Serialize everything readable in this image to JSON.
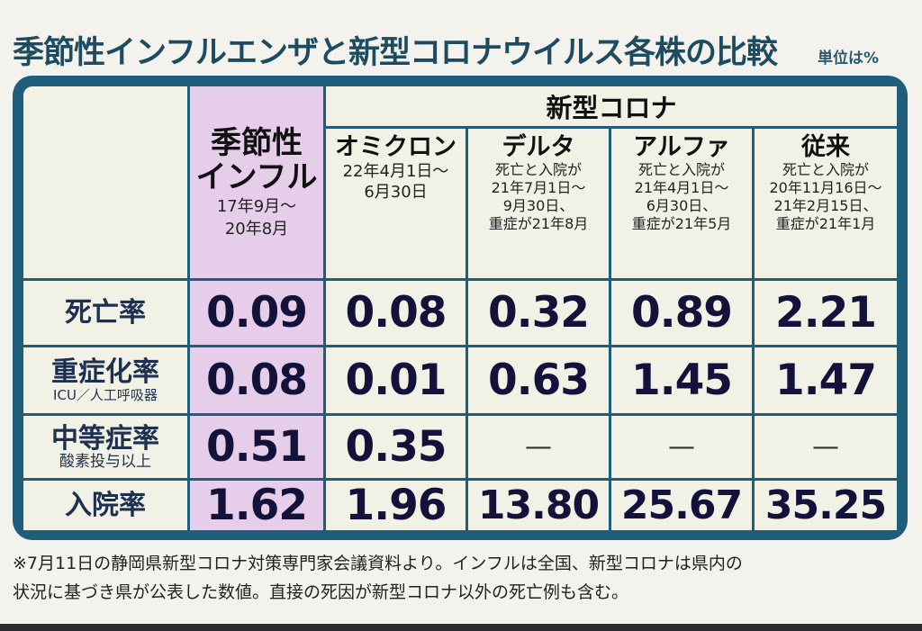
{
  "title": "季節性インフルエンザと新型コロナウイルス各株の比較",
  "unit_note": "単位は%",
  "group_header": "新型コロナ",
  "columns": [
    {
      "name": [
        "季節性",
        "インフル"
      ],
      "sub": [
        "17年9月～",
        "20年8月"
      ]
    },
    {
      "name": [
        "オミクロン"
      ],
      "sub": [
        "22年4月1日～",
        "6月30日"
      ]
    },
    {
      "name": [
        "デルタ"
      ],
      "sub": [
        "死亡と入院が",
        "21年7月1日～",
        "9月30日、",
        "重症が21年8月"
      ]
    },
    {
      "name": [
        "アルファ"
      ],
      "sub": [
        "死亡と入院が",
        "21年4月1日～",
        "6月30日、",
        "重症が21年5月"
      ]
    },
    {
      "name": [
        "従来"
      ],
      "sub": [
        "死亡と入院が",
        "20年11月16日～",
        "21年2月15日、",
        "重症が21年1月"
      ]
    }
  ],
  "rows": [
    {
      "label": "死亡率",
      "sub": "",
      "values": [
        "0.09",
        "0.08",
        "0.32",
        "0.89",
        "2.21"
      ]
    },
    {
      "label": "重症化率",
      "sub": "ICU／人工呼吸器",
      "values": [
        "0.08",
        "0.01",
        "0.63",
        "1.45",
        "1.47"
      ]
    },
    {
      "label": "中等症率",
      "sub": "酸素投与以上",
      "values": [
        "0.51",
        "0.35",
        "—",
        "—",
        "—"
      ]
    },
    {
      "label": "入院率",
      "sub": "",
      "values": [
        "1.62",
        "1.96",
        "13.80",
        "25.67",
        "35.25"
      ]
    }
  ],
  "footnote": [
    "※7月11日の静岡県新型コロナ対策専門家会議資料より。インフルは全国、新型コロナは県内の",
    "状況に基づき県が公表した数値。直接の死因が新型コロナ以外の死亡例も含む。"
  ],
  "colors": {
    "frame": "#1e5e7b",
    "cell": "#f1f1e6",
    "flu_highlight": "#e6cdea",
    "title": "#1d4c61"
  }
}
